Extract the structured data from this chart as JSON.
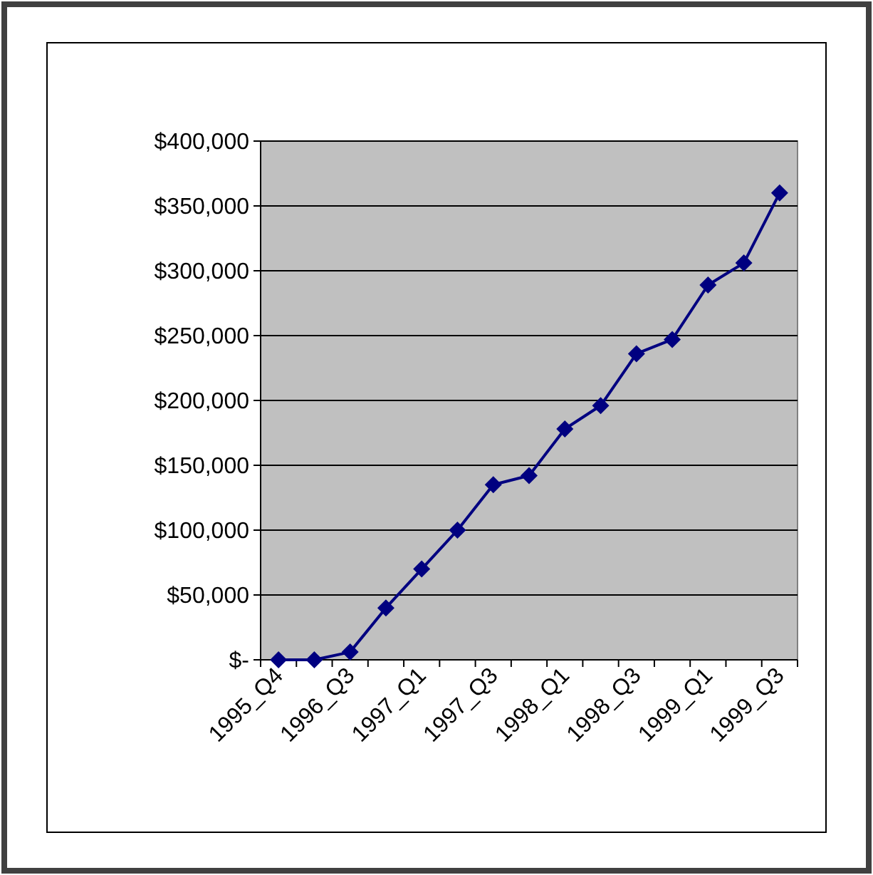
{
  "chart_data": {
    "type": "line",
    "categories": [
      "1995_Q4",
      null,
      "1996_Q3",
      null,
      "1997_Q1",
      null,
      "1997_Q3",
      null,
      "1998_Q1",
      null,
      "1998_Q3",
      null,
      "1999_Q1",
      null,
      "1999_Q3"
    ],
    "series": [
      {
        "color": "#000080",
        "values": [
          0,
          0,
          6000,
          40000,
          70000,
          100000,
          135000,
          142000,
          178000,
          196000,
          236000,
          247000,
          289000,
          306000,
          360000
        ]
      }
    ],
    "ylim": [
      0,
      400000
    ],
    "yticks": [
      {
        "value": 0,
        "label": "$-"
      },
      {
        "value": 50000,
        "label": "$50,000"
      },
      {
        "value": 100000,
        "label": "$100,000"
      },
      {
        "value": 150000,
        "label": "$150,000"
      },
      {
        "value": 200000,
        "label": "$200,000"
      },
      {
        "value": 250000,
        "label": "$250,000"
      },
      {
        "value": 300000,
        "label": "$300,000"
      },
      {
        "value": 350000,
        "label": "$350,000"
      },
      {
        "value": 400000,
        "label": "$400,000"
      }
    ],
    "grid": "y",
    "marker": "diamond",
    "line_style": "solid"
  }
}
